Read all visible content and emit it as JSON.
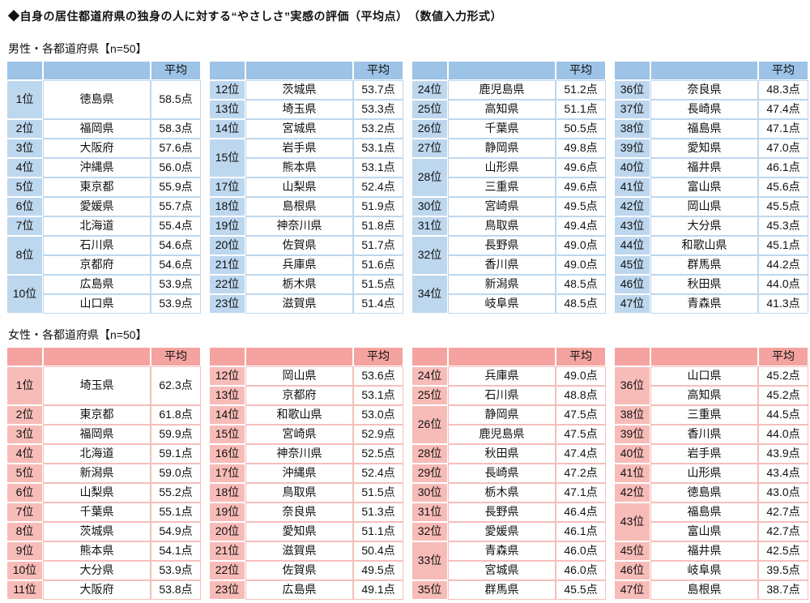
{
  "title": "◆自身の居住都道府県の独身の人に対する“やさしさ”実感の評価（平均点）　（数値入力形式）",
  "sections": [
    {
      "id": "male",
      "label": "男性・各都道府県【n=50】",
      "avg": "平均",
      "colors": {
        "header": "#9dc3e6",
        "rank": "#bdd7ee",
        "line": "#bdd7ee"
      },
      "tables": [
        {
          "groups": [
            {
              "rank": "1位",
              "tall": true,
              "entries": [
                {
                  "pref": "徳島県",
                  "score": "58.5点"
                }
              ]
            },
            {
              "rank": "2位",
              "entries": [
                {
                  "pref": "福岡県",
                  "score": "58.3点"
                }
              ]
            },
            {
              "rank": "3位",
              "entries": [
                {
                  "pref": "大阪府",
                  "score": "57.6点"
                }
              ]
            },
            {
              "rank": "4位",
              "entries": [
                {
                  "pref": "沖縄県",
                  "score": "56.0点"
                }
              ]
            },
            {
              "rank": "5位",
              "entries": [
                {
                  "pref": "東京都",
                  "score": "55.9点"
                }
              ]
            },
            {
              "rank": "6位",
              "entries": [
                {
                  "pref": "愛媛県",
                  "score": "55.7点"
                }
              ]
            },
            {
              "rank": "7位",
              "entries": [
                {
                  "pref": "北海道",
                  "score": "55.4点"
                }
              ]
            },
            {
              "rank": "8位",
              "entries": [
                {
                  "pref": "石川県",
                  "score": "54.6点"
                },
                {
                  "pref": "京都府",
                  "score": "54.6点"
                }
              ]
            },
            {
              "rank": "10位",
              "entries": [
                {
                  "pref": "広島県",
                  "score": "53.9点"
                },
                {
                  "pref": "山口県",
                  "score": "53.9点"
                }
              ]
            }
          ]
        },
        {
          "groups": [
            {
              "rank": "12位",
              "entries": [
                {
                  "pref": "茨城県",
                  "score": "53.7点"
                }
              ]
            },
            {
              "rank": "13位",
              "entries": [
                {
                  "pref": "埼玉県",
                  "score": "53.3点"
                }
              ]
            },
            {
              "rank": "14位",
              "entries": [
                {
                  "pref": "宮城県",
                  "score": "53.2点"
                }
              ]
            },
            {
              "rank": "15位",
              "entries": [
                {
                  "pref": "岩手県",
                  "score": "53.1点"
                },
                {
                  "pref": "熊本県",
                  "score": "53.1点"
                }
              ]
            },
            {
              "rank": "17位",
              "entries": [
                {
                  "pref": "山梨県",
                  "score": "52.4点"
                }
              ]
            },
            {
              "rank": "18位",
              "entries": [
                {
                  "pref": "島根県",
                  "score": "51.9点"
                }
              ]
            },
            {
              "rank": "19位",
              "entries": [
                {
                  "pref": "神奈川県",
                  "score": "51.8点"
                }
              ]
            },
            {
              "rank": "20位",
              "entries": [
                {
                  "pref": "佐賀県",
                  "score": "51.7点"
                }
              ]
            },
            {
              "rank": "21位",
              "entries": [
                {
                  "pref": "兵庫県",
                  "score": "51.6点"
                }
              ]
            },
            {
              "rank": "22位",
              "entries": [
                {
                  "pref": "栃木県",
                  "score": "51.5点"
                }
              ]
            },
            {
              "rank": "23位",
              "entries": [
                {
                  "pref": "滋賀県",
                  "score": "51.4点"
                }
              ]
            }
          ]
        },
        {
          "groups": [
            {
              "rank": "24位",
              "entries": [
                {
                  "pref": "鹿児島県",
                  "score": "51.2点"
                }
              ]
            },
            {
              "rank": "25位",
              "entries": [
                {
                  "pref": "高知県",
                  "score": "51.1点"
                }
              ]
            },
            {
              "rank": "26位",
              "entries": [
                {
                  "pref": "千葉県",
                  "score": "50.5点"
                }
              ]
            },
            {
              "rank": "27位",
              "entries": [
                {
                  "pref": "静岡県",
                  "score": "49.8点"
                }
              ]
            },
            {
              "rank": "28位",
              "entries": [
                {
                  "pref": "山形県",
                  "score": "49.6点"
                },
                {
                  "pref": "三重県",
                  "score": "49.6点"
                }
              ]
            },
            {
              "rank": "30位",
              "entries": [
                {
                  "pref": "宮崎県",
                  "score": "49.5点"
                }
              ]
            },
            {
              "rank": "31位",
              "entries": [
                {
                  "pref": "鳥取県",
                  "score": "49.4点"
                }
              ]
            },
            {
              "rank": "32位",
              "entries": [
                {
                  "pref": "長野県",
                  "score": "49.0点"
                },
                {
                  "pref": "香川県",
                  "score": "49.0点"
                }
              ]
            },
            {
              "rank": "34位",
              "entries": [
                {
                  "pref": "新潟県",
                  "score": "48.5点"
                },
                {
                  "pref": "岐阜県",
                  "score": "48.5点"
                }
              ]
            }
          ]
        },
        {
          "groups": [
            {
              "rank": "36位",
              "entries": [
                {
                  "pref": "奈良県",
                  "score": "48.3点"
                }
              ]
            },
            {
              "rank": "37位",
              "entries": [
                {
                  "pref": "長崎県",
                  "score": "47.4点"
                }
              ]
            },
            {
              "rank": "38位",
              "entries": [
                {
                  "pref": "福島県",
                  "score": "47.1点"
                }
              ]
            },
            {
              "rank": "39位",
              "entries": [
                {
                  "pref": "愛知県",
                  "score": "47.0点"
                }
              ]
            },
            {
              "rank": "40位",
              "entries": [
                {
                  "pref": "福井県",
                  "score": "46.1点"
                }
              ]
            },
            {
              "rank": "41位",
              "entries": [
                {
                  "pref": "富山県",
                  "score": "45.6点"
                }
              ]
            },
            {
              "rank": "42位",
              "entries": [
                {
                  "pref": "岡山県",
                  "score": "45.5点"
                }
              ]
            },
            {
              "rank": "43位",
              "entries": [
                {
                  "pref": "大分県",
                  "score": "45.3点"
                }
              ]
            },
            {
              "rank": "44位",
              "entries": [
                {
                  "pref": "和歌山県",
                  "score": "45.1点"
                }
              ]
            },
            {
              "rank": "45位",
              "entries": [
                {
                  "pref": "群馬県",
                  "score": "44.2点"
                }
              ]
            },
            {
              "rank": "46位",
              "entries": [
                {
                  "pref": "秋田県",
                  "score": "44.0点"
                }
              ]
            },
            {
              "rank": "47位",
              "entries": [
                {
                  "pref": "青森県",
                  "score": "41.3点"
                }
              ]
            }
          ]
        }
      ]
    },
    {
      "id": "female",
      "label": "女性・各都道府県【n=50】",
      "avg": "平均",
      "colors": {
        "header": "#f5a3a0",
        "rank": "#f8bcb8",
        "line": "#f5bfbc"
      },
      "tables": [
        {
          "groups": [
            {
              "rank": "1位",
              "tall": true,
              "entries": [
                {
                  "pref": "埼玉県",
                  "score": "62.3点"
                }
              ]
            },
            {
              "rank": "2位",
              "entries": [
                {
                  "pref": "東京都",
                  "score": "61.8点"
                }
              ]
            },
            {
              "rank": "3位",
              "entries": [
                {
                  "pref": "福岡県",
                  "score": "59.9点"
                }
              ]
            },
            {
              "rank": "4位",
              "entries": [
                {
                  "pref": "北海道",
                  "score": "59.1点"
                }
              ]
            },
            {
              "rank": "5位",
              "entries": [
                {
                  "pref": "新潟県",
                  "score": "59.0点"
                }
              ]
            },
            {
              "rank": "6位",
              "entries": [
                {
                  "pref": "山梨県",
                  "score": "55.2点"
                }
              ]
            },
            {
              "rank": "7位",
              "entries": [
                {
                  "pref": "千葉県",
                  "score": "55.1点"
                }
              ]
            },
            {
              "rank": "8位",
              "entries": [
                {
                  "pref": "茨城県",
                  "score": "54.9点"
                }
              ]
            },
            {
              "rank": "9位",
              "entries": [
                {
                  "pref": "熊本県",
                  "score": "54.1点"
                }
              ]
            },
            {
              "rank": "10位",
              "entries": [
                {
                  "pref": "大分県",
                  "score": "53.9点"
                }
              ]
            },
            {
              "rank": "11位",
              "entries": [
                {
                  "pref": "大阪府",
                  "score": "53.8点"
                }
              ]
            }
          ]
        },
        {
          "groups": [
            {
              "rank": "12位",
              "entries": [
                {
                  "pref": "岡山県",
                  "score": "53.6点"
                }
              ]
            },
            {
              "rank": "13位",
              "entries": [
                {
                  "pref": "京都府",
                  "score": "53.1点"
                }
              ]
            },
            {
              "rank": "14位",
              "entries": [
                {
                  "pref": "和歌山県",
                  "score": "53.0点"
                }
              ]
            },
            {
              "rank": "15位",
              "entries": [
                {
                  "pref": "宮崎県",
                  "score": "52.9点"
                }
              ]
            },
            {
              "rank": "16位",
              "entries": [
                {
                  "pref": "神奈川県",
                  "score": "52.5点"
                }
              ]
            },
            {
              "rank": "17位",
              "entries": [
                {
                  "pref": "沖縄県",
                  "score": "52.4点"
                }
              ]
            },
            {
              "rank": "18位",
              "entries": [
                {
                  "pref": "鳥取県",
                  "score": "51.5点"
                }
              ]
            },
            {
              "rank": "19位",
              "entries": [
                {
                  "pref": "奈良県",
                  "score": "51.3点"
                }
              ]
            },
            {
              "rank": "20位",
              "entries": [
                {
                  "pref": "愛知県",
                  "score": "51.1点"
                }
              ]
            },
            {
              "rank": "21位",
              "entries": [
                {
                  "pref": "滋賀県",
                  "score": "50.4点"
                }
              ]
            },
            {
              "rank": "22位",
              "entries": [
                {
                  "pref": "佐賀県",
                  "score": "49.5点"
                }
              ]
            },
            {
              "rank": "23位",
              "entries": [
                {
                  "pref": "広島県",
                  "score": "49.1点"
                }
              ]
            }
          ]
        },
        {
          "groups": [
            {
              "rank": "24位",
              "entries": [
                {
                  "pref": "兵庫県",
                  "score": "49.0点"
                }
              ]
            },
            {
              "rank": "25位",
              "entries": [
                {
                  "pref": "石川県",
                  "score": "48.8点"
                }
              ]
            },
            {
              "rank": "26位",
              "entries": [
                {
                  "pref": "静岡県",
                  "score": "47.5点"
                },
                {
                  "pref": "鹿児島県",
                  "score": "47.5点"
                }
              ]
            },
            {
              "rank": "28位",
              "entries": [
                {
                  "pref": "秋田県",
                  "score": "47.4点"
                }
              ]
            },
            {
              "rank": "29位",
              "entries": [
                {
                  "pref": "長崎県",
                  "score": "47.2点"
                }
              ]
            },
            {
              "rank": "30位",
              "entries": [
                {
                  "pref": "栃木県",
                  "score": "47.1点"
                }
              ]
            },
            {
              "rank": "31位",
              "entries": [
                {
                  "pref": "長野県",
                  "score": "46.4点"
                }
              ]
            },
            {
              "rank": "32位",
              "entries": [
                {
                  "pref": "愛媛県",
                  "score": "46.1点"
                }
              ]
            },
            {
              "rank": "33位",
              "entries": [
                {
                  "pref": "青森県",
                  "score": "46.0点"
                },
                {
                  "pref": "宮城県",
                  "score": "46.0点"
                }
              ]
            },
            {
              "rank": "35位",
              "entries": [
                {
                  "pref": "群馬県",
                  "score": "45.5点"
                }
              ]
            }
          ]
        },
        {
          "groups": [
            {
              "rank": "36位",
              "entries": [
                {
                  "pref": "山口県",
                  "score": "45.2点"
                },
                {
                  "pref": "高知県",
                  "score": "45.2点"
                }
              ]
            },
            {
              "rank": "38位",
              "entries": [
                {
                  "pref": "三重県",
                  "score": "44.5点"
                }
              ]
            },
            {
              "rank": "39位",
              "entries": [
                {
                  "pref": "香川県",
                  "score": "44.0点"
                }
              ]
            },
            {
              "rank": "40位",
              "entries": [
                {
                  "pref": "岩手県",
                  "score": "43.9点"
                }
              ]
            },
            {
              "rank": "41位",
              "entries": [
                {
                  "pref": "山形県",
                  "score": "43.4点"
                }
              ]
            },
            {
              "rank": "42位",
              "entries": [
                {
                  "pref": "徳島県",
                  "score": "43.0点"
                }
              ]
            },
            {
              "rank": "43位",
              "entries": [
                {
                  "pref": "福島県",
                  "score": "42.7点"
                },
                {
                  "pref": "富山県",
                  "score": "42.7点"
                }
              ]
            },
            {
              "rank": "45位",
              "entries": [
                {
                  "pref": "福井県",
                  "score": "42.5点"
                }
              ]
            },
            {
              "rank": "46位",
              "entries": [
                {
                  "pref": "岐阜県",
                  "score": "39.5点"
                }
              ]
            },
            {
              "rank": "47位",
              "entries": [
                {
                  "pref": "島根県",
                  "score": "38.7点"
                }
              ]
            }
          ]
        }
      ]
    }
  ]
}
